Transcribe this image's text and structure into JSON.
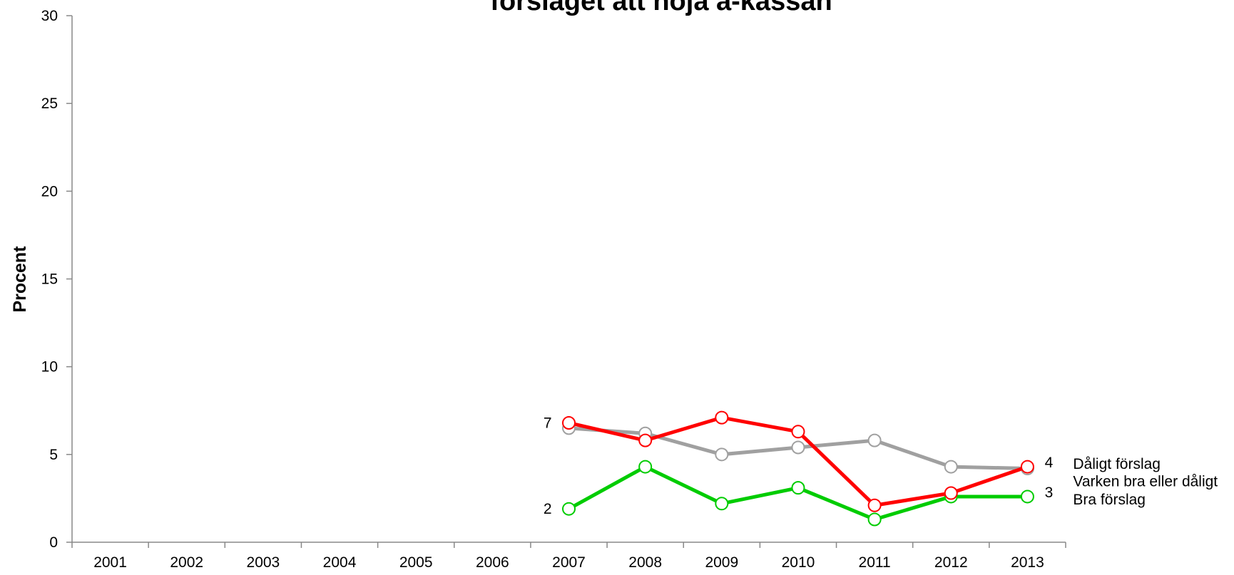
{
  "chart_data": {
    "type": "line",
    "title": "förslaget att höja a-kassan",
    "ylabel": "Procent",
    "categories": [
      "2001",
      "2002",
      "2003",
      "2004",
      "2005",
      "2006",
      "2007",
      "2008",
      "2009",
      "2010",
      "2011",
      "2012",
      "2013"
    ],
    "series": [
      {
        "name": "Varken bra eller dåligt",
        "color": "#a0a0a0",
        "values": [
          null,
          null,
          null,
          null,
          null,
          null,
          6.5,
          6.2,
          5.0,
          5.4,
          5.8,
          4.3,
          4.2
        ]
      },
      {
        "name": "Bra förslag",
        "color": "#00cc00",
        "values": [
          null,
          null,
          null,
          null,
          null,
          null,
          1.9,
          4.3,
          2.2,
          3.1,
          1.3,
          2.6,
          2.6
        ],
        "value_labels": [
          null,
          null,
          null,
          null,
          null,
          null,
          "2",
          null,
          null,
          null,
          null,
          null,
          "3"
        ]
      },
      {
        "name": "Dåligt förslag",
        "color": "#ff0000",
        "values": [
          null,
          null,
          null,
          null,
          null,
          null,
          6.8,
          5.8,
          7.1,
          6.3,
          2.1,
          2.8,
          4.3
        ],
        "value_labels": [
          null,
          null,
          null,
          null,
          null,
          null,
          "7",
          null,
          null,
          null,
          null,
          null,
          "4"
        ]
      }
    ],
    "ylim": [
      0,
      30
    ],
    "yticks": [
      0,
      5,
      10,
      15,
      20,
      25,
      30
    ],
    "grid": false
  }
}
